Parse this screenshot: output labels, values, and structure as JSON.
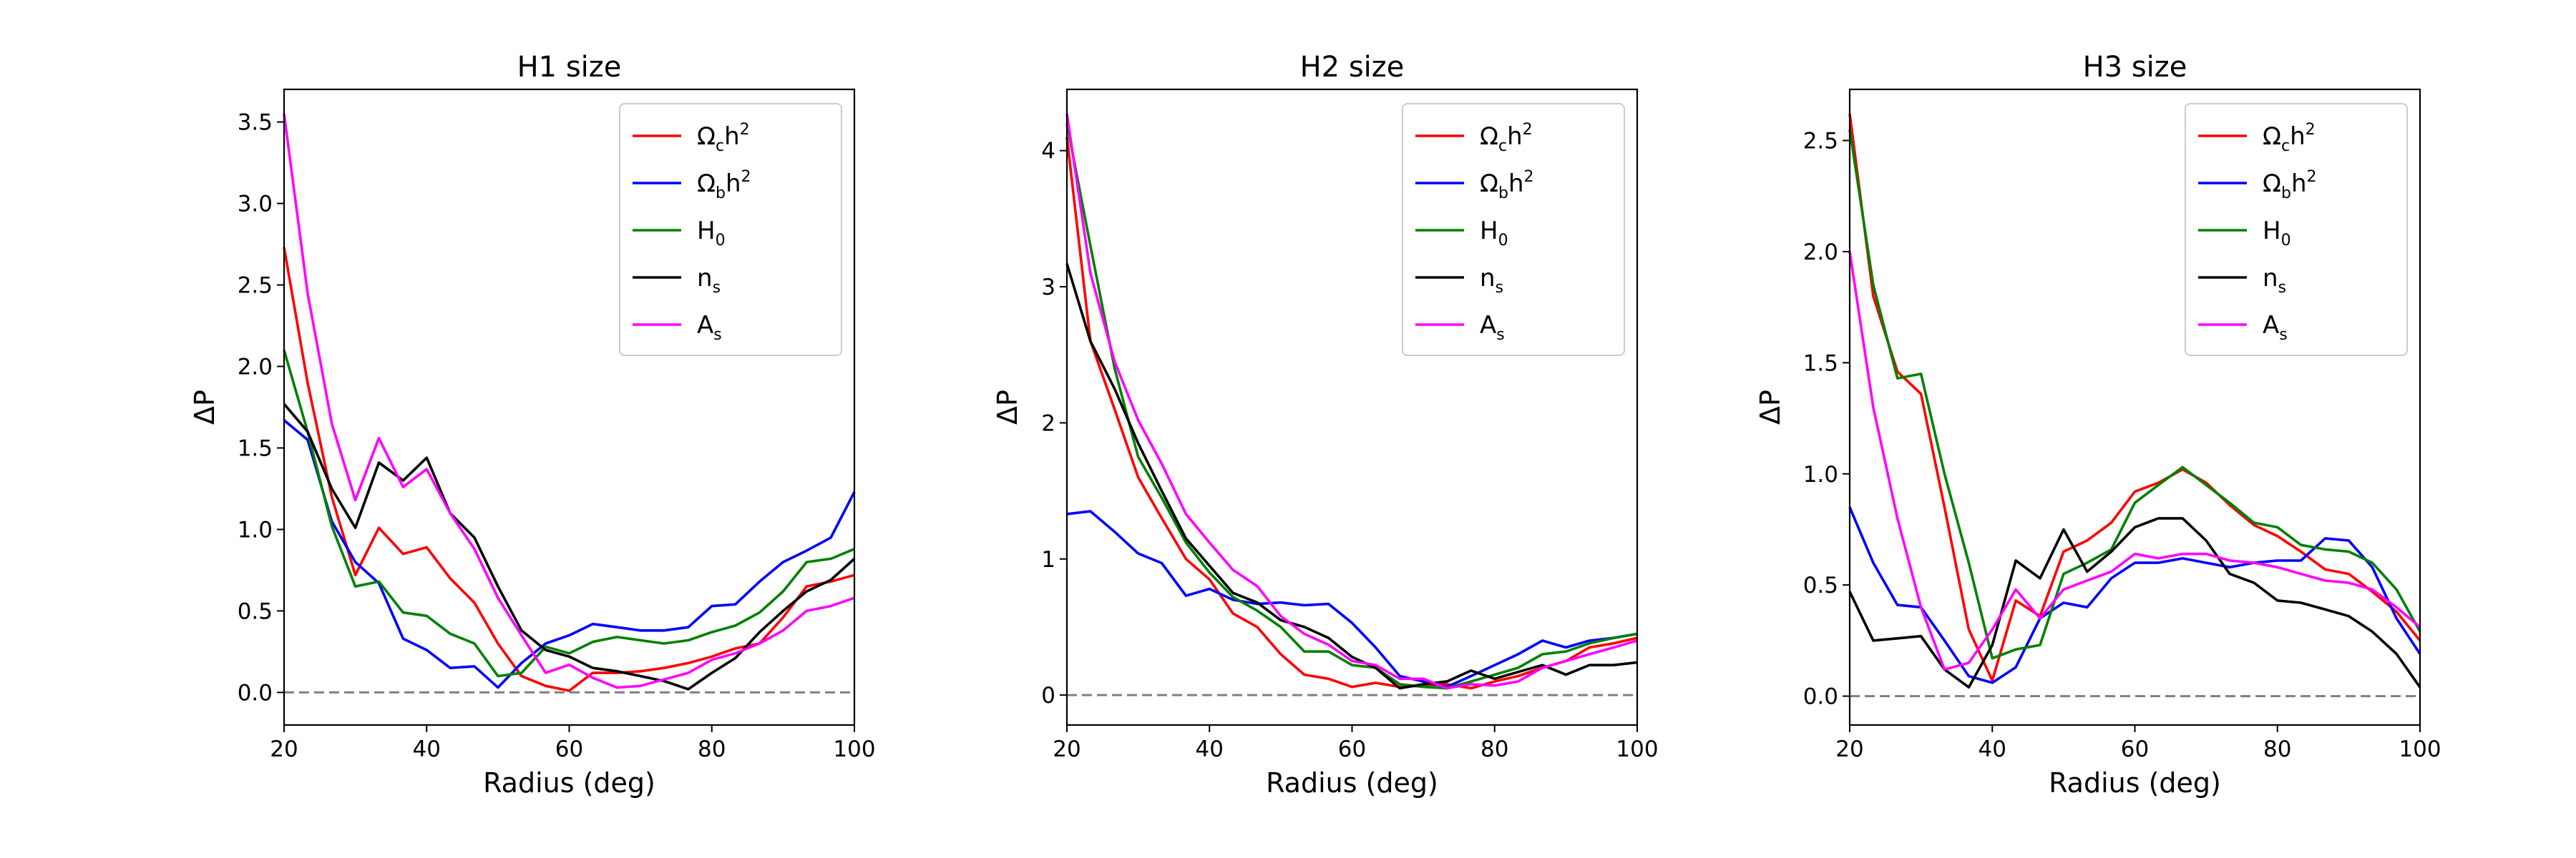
{
  "chart_data": [
    {
      "type": "line",
      "title": "H1 size",
      "xlabel": "Radius (deg)",
      "ylabel": "ΔP",
      "xlim": [
        20,
        100
      ],
      "ylim": [
        -0.2,
        3.7
      ],
      "xticks": [
        20,
        40,
        60,
        80,
        100
      ],
      "yticks": [
        0.0,
        0.5,
        1.0,
        1.5,
        2.0,
        2.5,
        3.0,
        3.5
      ],
      "ytick_labels": [
        "0.0",
        "0.5",
        "1.0",
        "1.5",
        "2.0",
        "2.5",
        "3.0",
        "3.5"
      ],
      "xtick_labels": [
        "20",
        "40",
        "60",
        "80",
        "100"
      ],
      "hline": 0.0,
      "legend_position": "top-right",
      "x": [
        20,
        23.3,
        26.7,
        30,
        33.3,
        36.7,
        40,
        43.3,
        46.7,
        50,
        53.3,
        56.7,
        60,
        63.3,
        66.7,
        70,
        73.3,
        76.7,
        80,
        83.3,
        86.7,
        90,
        93.3,
        96.7,
        100
      ],
      "series": [
        {
          "name": "Ωch2",
          "base": "Ω",
          "sub": "c",
          "rest": "h",
          "sup": "2",
          "color": "#ff0000",
          "values": [
            2.73,
            1.9,
            1.2,
            0.72,
            1.01,
            0.85,
            0.89,
            0.7,
            0.55,
            0.3,
            0.1,
            0.04,
            0.01,
            0.12,
            0.12,
            0.13,
            0.15,
            0.18,
            0.22,
            0.27,
            0.3,
            0.46,
            0.65,
            0.68,
            0.72
          ]
        },
        {
          "name": "Ωbh2",
          "base": "Ω",
          "sub": "b",
          "rest": "h",
          "sup": "2",
          "color": "#0000ff",
          "values": [
            1.67,
            1.55,
            1.05,
            0.8,
            0.67,
            0.33,
            0.26,
            0.15,
            0.16,
            0.03,
            0.18,
            0.3,
            0.35,
            0.42,
            0.4,
            0.38,
            0.38,
            0.4,
            0.53,
            0.54,
            0.68,
            0.8,
            0.87,
            0.95,
            1.23
          ]
        },
        {
          "name": "H0",
          "base": "H",
          "sub": "0",
          "rest": "",
          "sup": "",
          "color": "#008000",
          "values": [
            2.1,
            1.6,
            1.02,
            0.65,
            0.68,
            0.49,
            0.47,
            0.36,
            0.3,
            0.1,
            0.12,
            0.28,
            0.24,
            0.31,
            0.34,
            0.32,
            0.3,
            0.32,
            0.37,
            0.41,
            0.49,
            0.62,
            0.8,
            0.82,
            0.88
          ]
        },
        {
          "name": "ns",
          "base": "n",
          "sub": "s",
          "rest": "",
          "sup": "",
          "color": "#000000",
          "values": [
            1.77,
            1.6,
            1.25,
            1.01,
            1.41,
            1.3,
            1.44,
            1.1,
            0.95,
            0.65,
            0.38,
            0.26,
            0.22,
            0.15,
            0.13,
            0.1,
            0.07,
            0.02,
            0.12,
            0.21,
            0.37,
            0.5,
            0.62,
            0.69,
            0.82
          ]
        },
        {
          "name": "As",
          "base": "A",
          "sub": "s",
          "rest": "",
          "sup": "",
          "color": "#ff00ff",
          "values": [
            3.55,
            2.45,
            1.65,
            1.18,
            1.56,
            1.26,
            1.37,
            1.1,
            0.88,
            0.58,
            0.35,
            0.12,
            0.17,
            0.09,
            0.03,
            0.04,
            0.08,
            0.12,
            0.2,
            0.24,
            0.3,
            0.38,
            0.5,
            0.53,
            0.58
          ]
        }
      ]
    },
    {
      "type": "line",
      "title": "H2 size",
      "xlabel": "Radius (deg)",
      "ylabel": "ΔP",
      "xlim": [
        20,
        100
      ],
      "ylim": [
        -0.22,
        4.45
      ],
      "xticks": [
        20,
        40,
        60,
        80,
        100
      ],
      "yticks": [
        0,
        1,
        2,
        3,
        4
      ],
      "ytick_labels": [
        "0",
        "1",
        "2",
        "3",
        "4"
      ],
      "xtick_labels": [
        "20",
        "40",
        "60",
        "80",
        "100"
      ],
      "hline": 0.0,
      "legend_position": "top-right",
      "x": [
        20,
        23.3,
        26.7,
        30,
        33.3,
        36.7,
        40,
        43.3,
        46.7,
        50,
        53.3,
        56.7,
        60,
        63.3,
        66.7,
        70,
        73.3,
        76.7,
        80,
        83.3,
        86.7,
        90,
        93.3,
        96.7,
        100
      ],
      "series": [
        {
          "name": "Ωch2",
          "base": "Ω",
          "sub": "c",
          "rest": "h",
          "sup": "2",
          "color": "#ff0000",
          "values": [
            4.1,
            2.6,
            2.1,
            1.6,
            1.3,
            1.0,
            0.85,
            0.6,
            0.5,
            0.3,
            0.15,
            0.12,
            0.06,
            0.09,
            0.06,
            0.07,
            0.08,
            0.05,
            0.1,
            0.14,
            0.2,
            0.25,
            0.35,
            0.38,
            0.42
          ]
        },
        {
          "name": "Ωbh2",
          "base": "Ω",
          "sub": "b",
          "rest": "h",
          "sup": "2",
          "color": "#0000ff",
          "values": [
            1.33,
            1.35,
            1.2,
            1.04,
            0.97,
            0.73,
            0.78,
            0.7,
            0.67,
            0.68,
            0.66,
            0.67,
            0.53,
            0.35,
            0.14,
            0.1,
            0.06,
            0.14,
            0.22,
            0.3,
            0.4,
            0.35,
            0.4,
            0.42,
            0.45
          ]
        },
        {
          "name": "H0",
          "base": "H",
          "sub": "0",
          "rest": "",
          "sup": "",
          "color": "#008000",
          "values": [
            4.2,
            3.3,
            2.4,
            1.75,
            1.45,
            1.12,
            0.9,
            0.72,
            0.62,
            0.5,
            0.32,
            0.32,
            0.22,
            0.2,
            0.08,
            0.06,
            0.05,
            0.1,
            0.15,
            0.2,
            0.3,
            0.32,
            0.38,
            0.42,
            0.45
          ]
        },
        {
          "name": "ns",
          "base": "n",
          "sub": "s",
          "rest": "",
          "sup": "",
          "color": "#000000",
          "values": [
            3.17,
            2.6,
            2.25,
            1.85,
            1.5,
            1.15,
            0.95,
            0.75,
            0.68,
            0.55,
            0.5,
            0.42,
            0.28,
            0.2,
            0.05,
            0.08,
            0.1,
            0.18,
            0.12,
            0.17,
            0.22,
            0.15,
            0.22,
            0.22,
            0.24
          ]
        },
        {
          "name": "As",
          "base": "A",
          "sub": "s",
          "rest": "",
          "sup": "",
          "color": "#ff00ff",
          "values": [
            4.27,
            3.1,
            2.45,
            2.02,
            1.7,
            1.33,
            1.12,
            0.92,
            0.8,
            0.58,
            0.45,
            0.37,
            0.25,
            0.22,
            0.12,
            0.12,
            0.05,
            0.08,
            0.07,
            0.1,
            0.2,
            0.25,
            0.3,
            0.35,
            0.4
          ]
        }
      ]
    },
    {
      "type": "line",
      "title": "H3 size",
      "xlabel": "Radius (deg)",
      "ylabel": "ΔP",
      "xlim": [
        20,
        100
      ],
      "ylim": [
        -0.13,
        2.73
      ],
      "xticks": [
        20,
        40,
        60,
        80,
        100
      ],
      "yticks": [
        0.0,
        0.5,
        1.0,
        1.5,
        2.0,
        2.5
      ],
      "ytick_labels": [
        "0.0",
        "0.5",
        "1.0",
        "1.5",
        "2.0",
        "2.5"
      ],
      "xtick_labels": [
        "20",
        "40",
        "60",
        "80",
        "100"
      ],
      "hline": 0.0,
      "legend_position": "top-right",
      "x": [
        20,
        23.3,
        26.7,
        30,
        33.3,
        36.7,
        40,
        43.3,
        46.7,
        50,
        53.3,
        56.7,
        60,
        63.3,
        66.7,
        70,
        73.3,
        76.7,
        80,
        83.3,
        86.7,
        90,
        93.3,
        96.7,
        100
      ],
      "series": [
        {
          "name": "Ωch2",
          "base": "Ω",
          "sub": "c",
          "rest": "h",
          "sup": "2",
          "color": "#ff0000",
          "values": [
            2.62,
            1.8,
            1.46,
            1.36,
            0.85,
            0.3,
            0.07,
            0.43,
            0.36,
            0.65,
            0.7,
            0.78,
            0.92,
            0.96,
            1.02,
            0.96,
            0.86,
            0.77,
            0.72,
            0.65,
            0.57,
            0.55,
            0.47,
            0.38,
            0.25
          ]
        },
        {
          "name": "Ωbh2",
          "base": "Ω",
          "sub": "b",
          "rest": "h",
          "sup": "2",
          "color": "#0000ff",
          "values": [
            0.85,
            0.6,
            0.41,
            0.4,
            0.25,
            0.09,
            0.06,
            0.13,
            0.35,
            0.42,
            0.4,
            0.53,
            0.6,
            0.6,
            0.62,
            0.6,
            0.58,
            0.6,
            0.61,
            0.61,
            0.71,
            0.7,
            0.58,
            0.35,
            0.19
          ]
        },
        {
          "name": "H0",
          "base": "H",
          "sub": "0",
          "rest": "",
          "sup": "",
          "color": "#008000",
          "values": [
            2.55,
            1.85,
            1.43,
            1.45,
            1.0,
            0.6,
            0.17,
            0.21,
            0.23,
            0.55,
            0.6,
            0.66,
            0.87,
            0.95,
            1.03,
            0.95,
            0.87,
            0.78,
            0.76,
            0.68,
            0.66,
            0.65,
            0.6,
            0.48,
            0.29
          ]
        },
        {
          "name": "ns",
          "base": "n",
          "sub": "s",
          "rest": "",
          "sup": "",
          "color": "#000000",
          "values": [
            0.47,
            0.25,
            0.26,
            0.27,
            0.12,
            0.04,
            0.23,
            0.61,
            0.53,
            0.75,
            0.56,
            0.65,
            0.76,
            0.8,
            0.8,
            0.7,
            0.55,
            0.51,
            0.43,
            0.42,
            0.39,
            0.36,
            0.29,
            0.19,
            0.04
          ]
        },
        {
          "name": "As",
          "base": "A",
          "sub": "s",
          "rest": "",
          "sup": "",
          "color": "#ff00ff",
          "values": [
            2.0,
            1.3,
            0.8,
            0.4,
            0.12,
            0.15,
            0.3,
            0.48,
            0.35,
            0.48,
            0.52,
            0.56,
            0.64,
            0.62,
            0.64,
            0.64,
            0.61,
            0.6,
            0.58,
            0.55,
            0.52,
            0.51,
            0.48,
            0.4,
            0.31
          ]
        }
      ]
    }
  ]
}
